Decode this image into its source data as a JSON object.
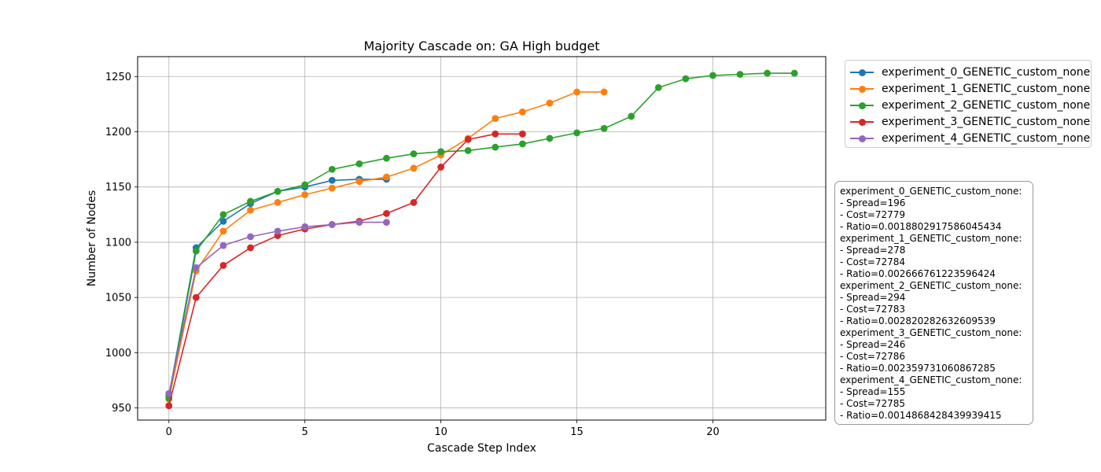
{
  "chart_data": {
    "type": "line",
    "title": "Majority Cascade on: GA High budget",
    "xlabel": "Cascade Step Index",
    "ylabel": "Number of Nodes",
    "xlim": [
      -1.15,
      24.15
    ],
    "ylim": [
      939,
      1268
    ],
    "xticks": [
      0,
      5,
      10,
      15,
      20
    ],
    "yticks": [
      950,
      1000,
      1050,
      1100,
      1150,
      1200,
      1250
    ],
    "grid": true,
    "legend_position": "outside-top-right",
    "series": [
      {
        "name": "experiment_0_GENETIC_custom_none",
        "color": "#1f77b4",
        "x": [
          0,
          1,
          2,
          3,
          4,
          5,
          6,
          7,
          8
        ],
        "values": [
          961,
          1095,
          1119,
          1135,
          1146,
          1150,
          1156,
          1157,
          1157
        ]
      },
      {
        "name": "experiment_1_GENETIC_custom_none",
        "color": "#ff7f0e",
        "x": [
          0,
          1,
          2,
          3,
          4,
          5,
          6,
          7,
          8,
          9,
          10,
          11,
          12,
          13,
          14,
          15,
          16
        ],
        "values": [
          958,
          1074,
          1110,
          1129,
          1136,
          1143,
          1149,
          1155,
          1159,
          1167,
          1179,
          1194,
          1212,
          1218,
          1226,
          1236,
          1236
        ]
      },
      {
        "name": "experiment_2_GENETIC_custom_none",
        "color": "#2ca02c",
        "x": [
          0,
          1,
          2,
          3,
          4,
          5,
          6,
          7,
          8,
          9,
          10,
          11,
          12,
          13,
          14,
          15,
          16,
          17,
          18,
          19,
          20,
          21,
          22,
          23
        ],
        "values": [
          959,
          1092,
          1125,
          1137,
          1146,
          1152,
          1166,
          1171,
          1176,
          1180,
          1182,
          1183,
          1186,
          1189,
          1194,
          1199,
          1203,
          1214,
          1240,
          1248,
          1251,
          1252,
          1253,
          1253
        ]
      },
      {
        "name": "experiment_3_GENETIC_custom_none",
        "color": "#d62728",
        "x": [
          0,
          1,
          2,
          3,
          4,
          5,
          6,
          7,
          8,
          9,
          10,
          11,
          12,
          13
        ],
        "values": [
          952,
          1050,
          1079,
          1095,
          1106,
          1112,
          1116,
          1119,
          1126,
          1136,
          1168,
          1193,
          1198,
          1198
        ]
      },
      {
        "name": "experiment_4_GENETIC_custom_none",
        "color": "#9467bd",
        "x": [
          0,
          1,
          2,
          3,
          4,
          5,
          6,
          7,
          8
        ],
        "values": [
          963,
          1077,
          1097,
          1105,
          1110,
          1114,
          1116,
          1118,
          1118
        ]
      }
    ]
  },
  "stats_box": {
    "lines": [
      "experiment_0_GENETIC_custom_none:",
      "- Spread=196",
      "- Cost=72779",
      "- Ratio=0.0018802917586045434",
      "experiment_1_GENETIC_custom_none:",
      "- Spread=278",
      "- Cost=72784",
      "- Ratio=0.0026667612235964​24",
      "experiment_2_GENETIC_custom_none:",
      "- Spread=294",
      "- Cost=72783",
      "- Ratio=0.002820282632609539",
      "experiment_3_GENETIC_custom_none:",
      "- Spread=246",
      "- Cost=72786",
      "- Ratio=0.002359731060867285",
      "experiment_4_GENETIC_custom_none:",
      "- Spread=155",
      "- Cost=72785",
      "- Ratio=0.0014868428439939415"
    ]
  }
}
